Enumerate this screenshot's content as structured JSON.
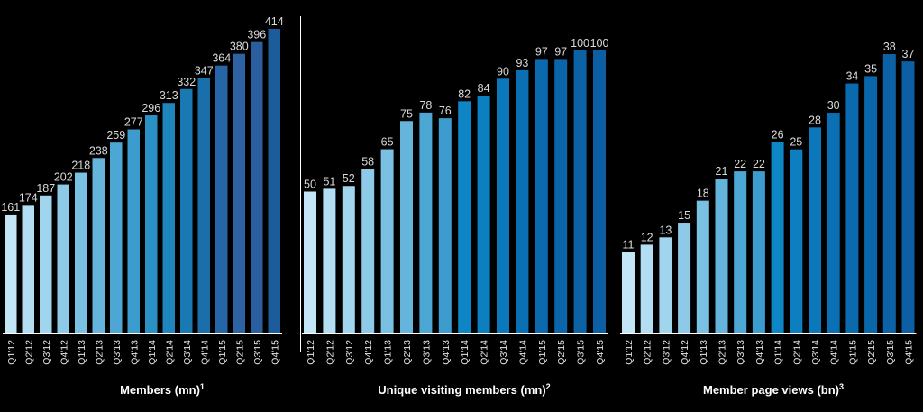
{
  "chart_data": [
    {
      "type": "bar",
      "title": "Members (mn)",
      "footnote": "1",
      "categories": [
        "Q1'12",
        "Q2'12",
        "Q3'12",
        "Q4'12",
        "Q1'13",
        "Q2'13",
        "Q3'13",
        "Q4'13",
        "Q1'14",
        "Q2'14",
        "Q3'14",
        "Q4'14",
        "Q1'15",
        "Q2'15",
        "Q3'15",
        "Q4'15"
      ],
      "values": [
        161,
        174,
        187,
        202,
        218,
        238,
        259,
        277,
        296,
        313,
        332,
        347,
        364,
        380,
        396,
        414
      ],
      "ylim": [
        0,
        414
      ],
      "grid": false,
      "colors": [
        "#c3e6f6",
        "#b2ddf2",
        "#a1d4ed",
        "#8ecae8",
        "#7ac0e2",
        "#64b4dc",
        "#4da7d4",
        "#3b9ccd",
        "#2b91c5",
        "#1f85bd",
        "#1a79b3",
        "#1a6fab",
        "#2766a6",
        "#2d62a3",
        "#2a5e9f",
        "#1d5c9b"
      ]
    },
    {
      "type": "bar",
      "title": "Unique visiting members (mn)",
      "footnote": "2",
      "categories": [
        "Q1'12",
        "Q2'12",
        "Q3'12",
        "Q4'12",
        "Q1'13",
        "Q2'13",
        "Q3'13",
        "Q4'13",
        "Q1'14",
        "Q2'14",
        "Q3'14",
        "Q4'14",
        "Q1'15",
        "Q2'15",
        "Q3'15",
        "Q4'15"
      ],
      "values": [
        50,
        51,
        52,
        58,
        65,
        75,
        78,
        76,
        82,
        84,
        90,
        93,
        97,
        97,
        100,
        100
      ],
      "ylim": [
        0,
        100
      ],
      "grid": false,
      "colors": [
        "#c3e6f6",
        "#b2ddf2",
        "#a1d4ed",
        "#8ecae8",
        "#7ac0e2",
        "#64b4dc",
        "#4da7d4",
        "#3b9ccd",
        "#0e86c6",
        "#0b7fc0",
        "#0a78ba",
        "#0a70b3",
        "#0a6aad",
        "#0b66a9",
        "#0c62a5",
        "#0c5fa2"
      ]
    },
    {
      "type": "bar",
      "title": "Member page views (bn)",
      "footnote": "3",
      "categories": [
        "Q1'12",
        "Q2'12",
        "Q3'12",
        "Q4'12",
        "Q1'13",
        "Q2'13",
        "Q3'13",
        "Q4'13",
        "Q1'14",
        "Q2'14",
        "Q3'14",
        "Q4'14",
        "Q1'15",
        "Q2'15",
        "Q3'15",
        "Q4'15"
      ],
      "values": [
        11,
        12,
        13,
        15,
        18,
        21,
        22,
        22,
        26,
        25,
        28,
        30,
        34,
        35,
        38,
        37
      ],
      "ylim": [
        0,
        38
      ],
      "grid": false,
      "colors": [
        "#c3e6f6",
        "#b2ddf2",
        "#a1d4ed",
        "#8ecae8",
        "#7ac0e2",
        "#64b4dc",
        "#4da7d4",
        "#3b9ccd",
        "#0e86c6",
        "#0b7fc0",
        "#0a78ba",
        "#0a70b3",
        "#0a6aad",
        "#0b66a9",
        "#0c62a5",
        "#0c5fa2"
      ]
    }
  ]
}
